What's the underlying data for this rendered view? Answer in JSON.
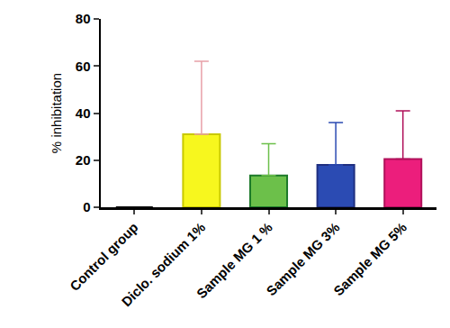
{
  "chart_data": {
    "type": "bar",
    "y_label": "% inhibitation",
    "categories": [
      "Control group",
      "Diclo. sodium 1%",
      "Sample MG 1 %",
      "Sample MG 3%",
      "Sample MG 5%"
    ],
    "values": [
      0,
      31,
      13.5,
      18,
      20.5
    ],
    "errors": [
      0,
      31,
      13.5,
      18,
      20.5
    ],
    "colors": [
      "#ffffff",
      "#f7f71e",
      "#6cc04a",
      "#2b4bb3",
      "#ec1e7c"
    ],
    "ylim": [
      0,
      80
    ],
    "yticks": [
      0,
      20,
      40,
      60,
      80
    ],
    "grid": false
  }
}
